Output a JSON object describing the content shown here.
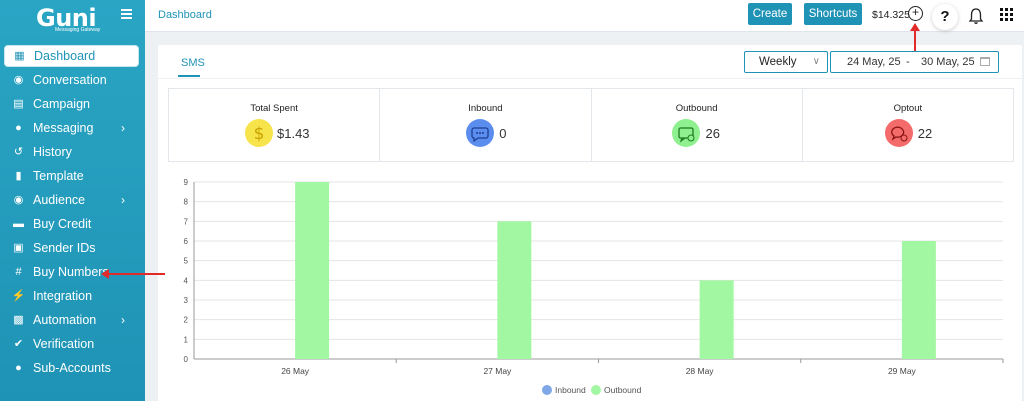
{
  "brand": {
    "logo": "Guni",
    "tagline": "Messaging Gateway"
  },
  "sidebar": {
    "items": [
      {
        "label": "Dashboard",
        "icon": "grid-icon",
        "active": true,
        "chevron": false
      },
      {
        "label": "Conversation",
        "icon": "chat-bubbles-icon",
        "active": false,
        "chevron": false
      },
      {
        "label": "Campaign",
        "icon": "inbox-tray-icon",
        "active": false,
        "chevron": false
      },
      {
        "label": "Messaging",
        "icon": "message-icon",
        "active": false,
        "chevron": true
      },
      {
        "label": "History",
        "icon": "history-icon",
        "active": false,
        "chevron": false
      },
      {
        "label": "Template",
        "icon": "file-icon",
        "active": false,
        "chevron": false
      },
      {
        "label": "Audience",
        "icon": "users-icon",
        "active": false,
        "chevron": true
      },
      {
        "label": "Buy Credit",
        "icon": "credit-card-icon",
        "active": false,
        "chevron": false
      },
      {
        "label": "Sender IDs",
        "icon": "id-card-icon",
        "active": false,
        "chevron": false
      },
      {
        "label": "Buy Numbers",
        "icon": "hash-icon",
        "active": false,
        "chevron": false
      },
      {
        "label": "Integration",
        "icon": "plug-icon",
        "active": false,
        "chevron": false
      },
      {
        "label": "Automation",
        "icon": "robot-icon",
        "active": false,
        "chevron": true
      },
      {
        "label": "Verification",
        "icon": "check-circle-icon",
        "active": false,
        "chevron": false
      },
      {
        "label": "Sub-Accounts",
        "icon": "user-group-icon",
        "active": false,
        "chevron": false
      }
    ]
  },
  "topbar": {
    "breadcrumb": "Dashboard",
    "create_label": "Create",
    "shortcuts_label": "Shortcuts",
    "balance": "$14.325",
    "help_label": "?"
  },
  "filters": {
    "tab": "SMS",
    "period": "Weekly",
    "date_start": "24 May, 25",
    "date_sep": "-",
    "date_end": "30 May, 25"
  },
  "stats": [
    {
      "label": "Total Spent",
      "value": "$1.43",
      "icon": "dollar-icon",
      "color": "#f7e34a"
    },
    {
      "label": "Inbound",
      "value": "0",
      "icon": "chat-icon",
      "color": "#5b8def"
    },
    {
      "label": "Outbound",
      "value": "26",
      "icon": "outbox-icon",
      "color": "#8ef08e"
    },
    {
      "label": "Optout",
      "value": "22",
      "icon": "optout-icon",
      "color": "#f46b6b"
    }
  ],
  "colors": {
    "accent": "#1f93b5",
    "inbound": "#7fa7e8",
    "outbound": "#a2f7a2"
  },
  "chart_data": {
    "type": "bar",
    "categories": [
      "26 May",
      "27 May",
      "28 May",
      "29 May"
    ],
    "series": [
      {
        "name": "Inbound",
        "values": [
          0,
          0,
          0,
          0
        ]
      },
      {
        "name": "Outbound",
        "values": [
          9,
          7,
          4,
          6
        ]
      }
    ],
    "yticks": [
      0,
      1,
      2,
      3,
      4,
      5,
      6,
      7,
      8,
      9
    ],
    "ylim": [
      0,
      9
    ],
    "grid": true,
    "legend": "bottom-center"
  }
}
